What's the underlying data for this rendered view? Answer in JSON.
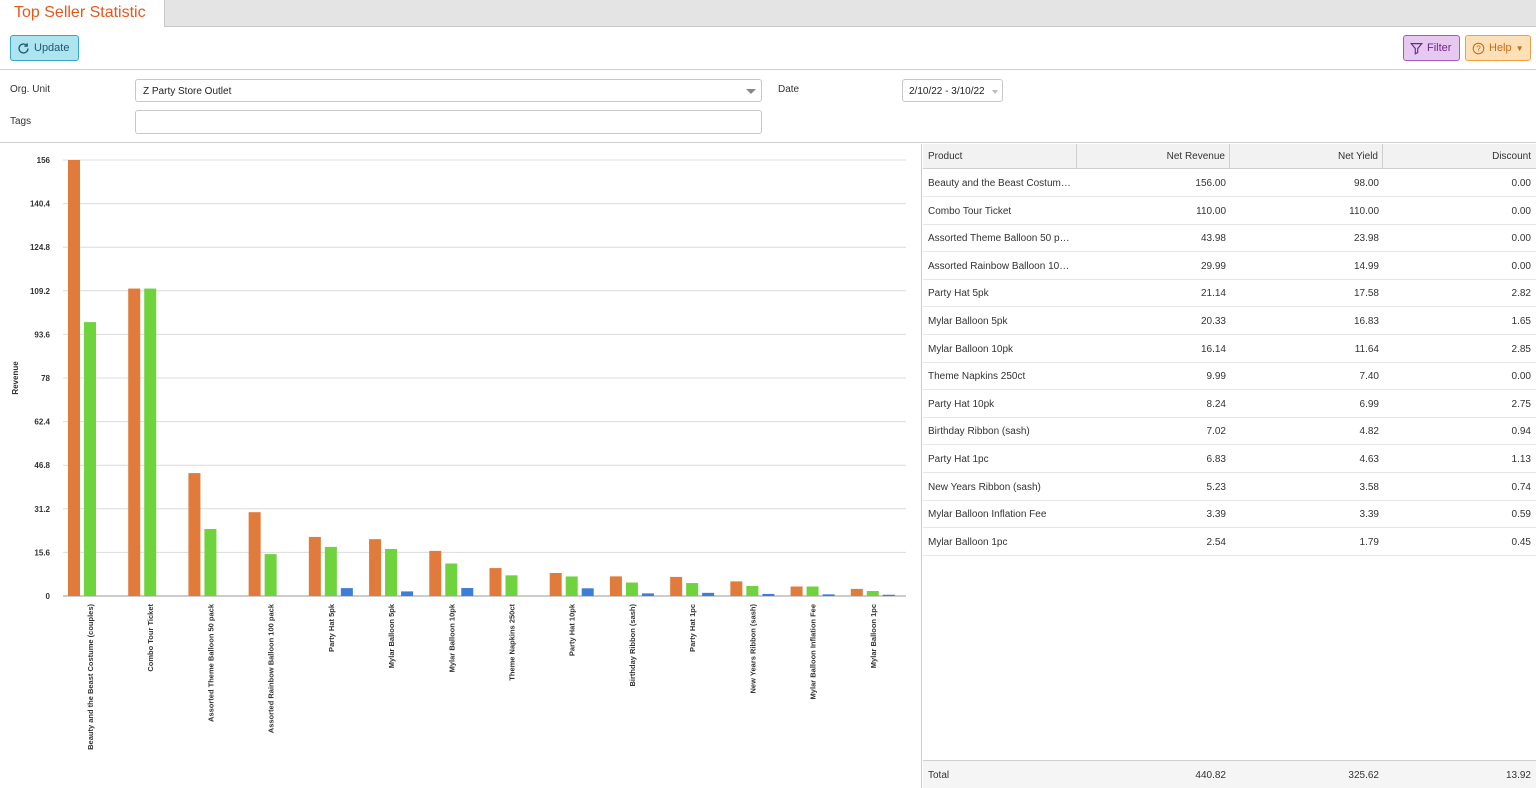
{
  "tab": {
    "title": "Top Seller Statistic"
  },
  "toolbar": {
    "update_label": "Update",
    "filter_label": "Filter",
    "help_label": "Help"
  },
  "form": {
    "org_unit_label": "Org. Unit",
    "org_unit_value": "Z Party Store Outlet",
    "date_label": "Date",
    "date_value": "2/10/22 - 3/10/22",
    "tags_label": "Tags",
    "tags_value": ""
  },
  "colors": {
    "revenue": "#e07b3c",
    "yield": "#6ed33c",
    "discount": "#3b7ed8",
    "accent": "#e8561b"
  },
  "chart_data": {
    "type": "bar",
    "ylabel": "Revenue",
    "ylim": [
      0,
      156
    ],
    "yticks": [
      "156",
      "140.4",
      "124.8",
      "109.2",
      "93.6",
      "78",
      "62.4",
      "46.8",
      "31.2",
      "15.6",
      "0"
    ],
    "grid": true,
    "categories": [
      "Beauty and the Beast Costume (couples)",
      "Combo Tour Ticket",
      "Assorted Theme Balloon 50 pack",
      "Assorted Rainbow Balloon 100 pack",
      "Party Hat 5pk",
      "Mylar Balloon 5pk",
      "Mylar Balloon 10pk",
      "Theme Napkins 250ct",
      "Party Hat 10pk",
      "Birthday Ribbon (sash)",
      "Party Hat 1pc",
      "New Years Ribbon (sash)",
      "Mylar Balloon Inflation Fee",
      "Mylar Balloon 1pc"
    ],
    "series": [
      {
        "values": [
          156.0,
          110.0,
          43.98,
          29.99,
          21.14,
          20.33,
          16.14,
          9.99,
          8.24,
          7.02,
          6.83,
          5.23,
          3.39,
          2.54
        ]
      },
      {
        "values": [
          98.0,
          110.0,
          23.98,
          14.99,
          17.58,
          16.83,
          11.64,
          7.4,
          6.99,
          4.82,
          4.63,
          3.58,
          3.39,
          1.79
        ]
      },
      {
        "values": [
          0.0,
          0.0,
          0.0,
          0.0,
          2.82,
          1.65,
          2.85,
          0.0,
          2.75,
          0.94,
          1.13,
          0.74,
          0.59,
          0.45
        ]
      }
    ]
  },
  "table": {
    "headers": [
      "Product",
      "Net Revenue",
      "Net Yield",
      "Discount"
    ],
    "rows": [
      [
        "Beauty and the Beast Costume (couples)",
        "156.00",
        "98.00",
        "0.00"
      ],
      [
        "Combo Tour Ticket",
        "110.00",
        "110.00",
        "0.00"
      ],
      [
        "Assorted Theme Balloon 50 pack",
        "43.98",
        "23.98",
        "0.00"
      ],
      [
        "Assorted Rainbow Balloon 100 pack",
        "29.99",
        "14.99",
        "0.00"
      ],
      [
        "Party Hat 5pk",
        "21.14",
        "17.58",
        "2.82"
      ],
      [
        "Mylar Balloon 5pk",
        "20.33",
        "16.83",
        "1.65"
      ],
      [
        "Mylar Balloon 10pk",
        "16.14",
        "11.64",
        "2.85"
      ],
      [
        "Theme Napkins 250ct",
        "9.99",
        "7.40",
        "0.00"
      ],
      [
        "Party Hat 10pk",
        "8.24",
        "6.99",
        "2.75"
      ],
      [
        "Birthday Ribbon (sash)",
        "7.02",
        "4.82",
        "0.94"
      ],
      [
        "Party Hat 1pc",
        "6.83",
        "4.63",
        "1.13"
      ],
      [
        "New Years Ribbon (sash)",
        "5.23",
        "3.58",
        "0.74"
      ],
      [
        "Mylar Balloon Inflation Fee",
        "3.39",
        "3.39",
        "0.59"
      ],
      [
        "Mylar Balloon 1pc",
        "2.54",
        "1.79",
        "0.45"
      ]
    ],
    "total": [
      "Total",
      "440.82",
      "325.62",
      "13.92"
    ]
  }
}
